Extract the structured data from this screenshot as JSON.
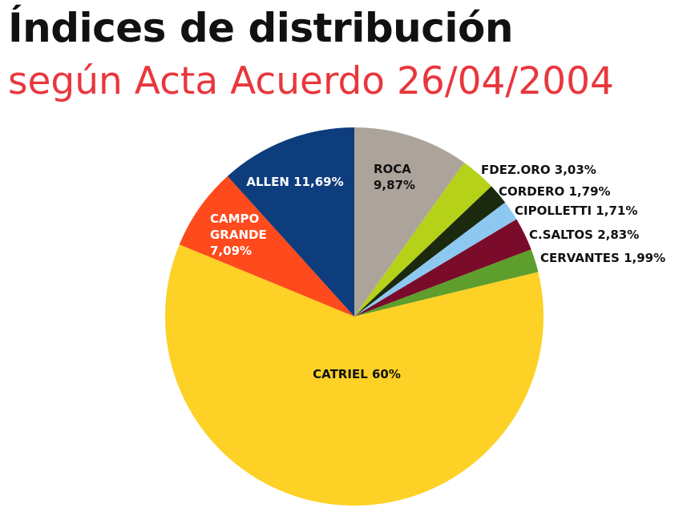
{
  "chart_data": {
    "type": "pie",
    "title": "Índices de distribución",
    "subtitle": "según Acta Acuerdo 26/04/2004",
    "slices": [
      {
        "label": "ROCA 9,87%",
        "value": 9.87,
        "color": "#aca49b",
        "label_color": "#111111"
      },
      {
        "label": "FDEZ.ORO 3,03%",
        "value": 3.03,
        "color": "#b5d219",
        "label_color": "#111111"
      },
      {
        "label": "CORDERO 1,79%",
        "value": 1.79,
        "color": "#1b2a0e",
        "label_color": "#111111"
      },
      {
        "label": "CIPOLLETTI 1,71%",
        "value": 1.71,
        "color": "#8dc8f1",
        "label_color": "#111111"
      },
      {
        "label": "C.SALTOS 2,83%",
        "value": 2.83,
        "color": "#7a0b2a",
        "label_color": "#111111"
      },
      {
        "label": "CERVANTES 1,99%",
        "value": 1.99,
        "color": "#5d9e2d",
        "label_color": "#111111"
      },
      {
        "label": "CATRIEL 60%",
        "value": 60,
        "color": "#fdd125",
        "label_color": "#111111"
      },
      {
        "label": "CAMPO GRANDE 7,09%",
        "value": 7.09,
        "color": "#fe4a1c",
        "label_color": "#ffffff"
      },
      {
        "label": "ALLEN 11,69%",
        "value": 11.69,
        "color": "#0d3d7c",
        "label_color": "#ffffff"
      }
    ]
  }
}
